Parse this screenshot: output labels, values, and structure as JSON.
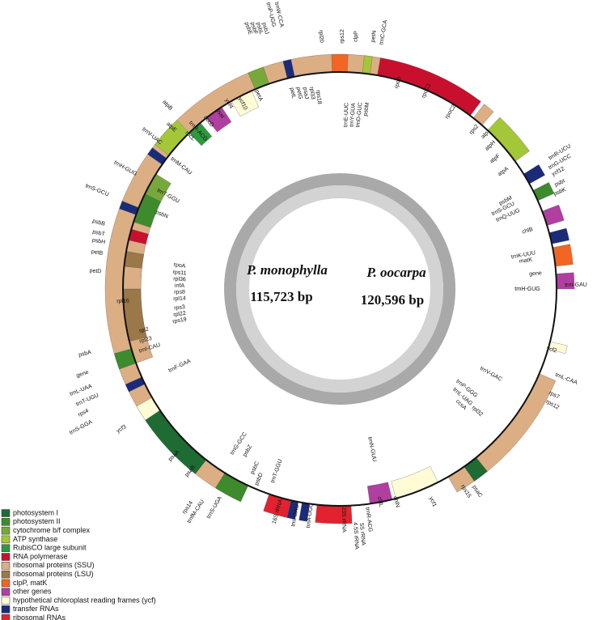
{
  "center_labels": {
    "species_1": "P. monophylla",
    "length_1": "115,723 bp",
    "species_2": "P. oocarpa",
    "length_2": "120,596 bp"
  },
  "legend": [
    {
      "label": "photosystem I",
      "color": "#1e6b34"
    },
    {
      "label": "photosystem II",
      "color": "#3d8b2c"
    },
    {
      "label": "cytochrome b/f complex",
      "color": "#77a83b"
    },
    {
      "label": "ATP synthase",
      "color": "#a4c639"
    },
    {
      "label": "RubisCO large subunit",
      "color": "#2e9a3e"
    },
    {
      "label": "RNA polymerase",
      "color": "#c8102e"
    },
    {
      "label": "ribosomal proteins (SSU)",
      "color": "#dcae84"
    },
    {
      "label": "ribosomal proteins (LSU)",
      "color": "#9b7848"
    },
    {
      "label": "clpP, matK",
      "color": "#f26522"
    },
    {
      "label": "other genes",
      "color": "#b03fa0"
    },
    {
      "label": "hypothetical chloroplast reading frames (ycf)",
      "color": "#fffbd5"
    },
    {
      "label": "transfer RNAs",
      "color": "#1b2b7a"
    },
    {
      "label": "ribosomal RNAs",
      "color": "#e3222f"
    }
  ],
  "gene_labels": [
    "trnP-UGG",
    "trnW-CCA",
    "psbE",
    "psbF",
    "psbL",
    "psbJ",
    "rpl20",
    "rps12",
    "clpP",
    "petN",
    "trnC-GCA",
    "petL",
    "petG",
    "psaJ",
    "rpl33",
    "rps18",
    "trnE-UUC",
    "trnY-GUA",
    "trnD-GUC",
    "psbM",
    "petA",
    "ycf10",
    "ycf4",
    "psaI",
    "accD",
    "trnR-ACG",
    "rbcL",
    "atpB",
    "atpE",
    "trnV-UAC",
    "trnM-CAU",
    "trnH-GUG",
    "trnT-GGU",
    "trnS-GCU",
    "psbB",
    "psbT",
    "psbH",
    "petB",
    "petD",
    "psbN",
    "rpoA",
    "rps11",
    "rpl36",
    "infA",
    "rps8",
    "rpl14",
    "rpl16",
    "rps3",
    "rpl22",
    "rps19",
    "rpl2",
    "rpl23",
    "trnI-CAU",
    "psbA",
    "trnF-GAA",
    "gene",
    "trnL-UAA",
    "trnT-UGU",
    "rps4",
    "trnS-GGA",
    "ycf3",
    "psaA",
    "psaB",
    "rps14",
    "trnfM-CAU",
    "trnS-UGA",
    "trnG-GCC",
    "psbZ",
    "psbC",
    "psbD",
    "trnT-GGU",
    "16S rRNA",
    "trnI-GAU",
    "trnA-UGC",
    "23S rRNA",
    "4.5S rRNA",
    "5S rRNA",
    "trnR-ACG",
    "trnN-GUU",
    "chlL",
    "chlN",
    "ycf1",
    "psaC",
    "rps15",
    "rpl32",
    "ccsA",
    "trnL-UAG",
    "trnP-GGG",
    "trnV-GAC",
    "rps7",
    "rps12",
    "trnL-CAA",
    "ycf2",
    "trnI-GAU",
    "trnH-GUG",
    "gene",
    "matK",
    "trnK-UUU",
    "chlB",
    "trnQ-UUG",
    "trnS-GCU",
    "psbM",
    "psbK",
    "psbI",
    "ycf12",
    "trnG-UCC",
    "trnR-UCU",
    "atpA",
    "atpF",
    "atpH",
    "atpI",
    "rps2",
    "rpoC2",
    "rpoC1",
    "rpoB"
  ]
}
